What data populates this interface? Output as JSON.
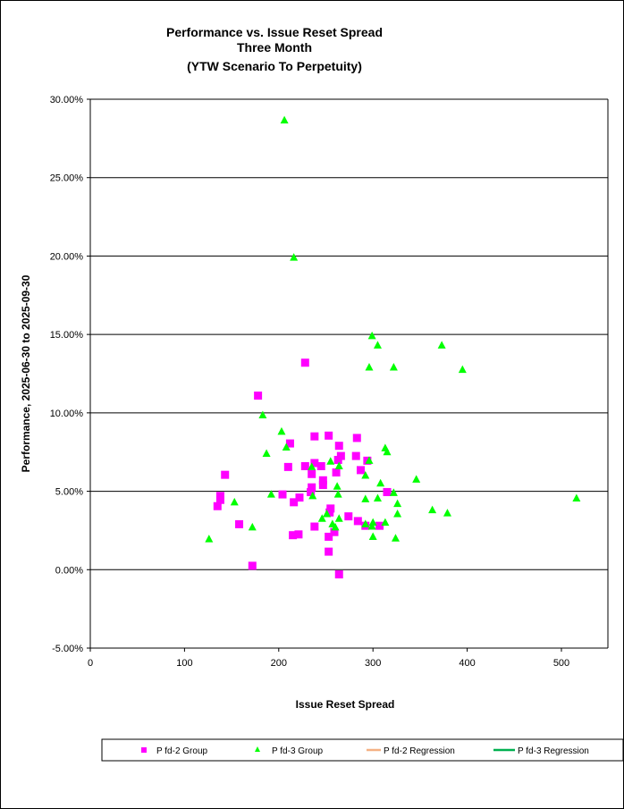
{
  "chart_data": {
    "type": "scatter",
    "title": [
      "Performance vs. Issue Reset Spread",
      "Three Month",
      "(YTW Scenario To Perpetuity)"
    ],
    "xlabel": "Issue Reset Spread",
    "ylabel": "Performance, 2025-06-30  to 2025-09-30",
    "xlim": [
      0,
      550
    ],
    "ylim": [
      -5,
      30
    ],
    "xticks": [
      0,
      100,
      200,
      300,
      400,
      500
    ],
    "xtick_labels": [
      "0",
      "100",
      "200",
      "300",
      "400",
      "500"
    ],
    "yticks": [
      -5,
      0,
      5,
      10,
      15,
      20,
      25,
      30
    ],
    "ytick_labels": [
      "-5.00%",
      "0.00%",
      "5.00%",
      "10.00%",
      "15.00%",
      "20.00%",
      "25.00%",
      "30.00%"
    ],
    "grid": "horizontal",
    "legend_position": "bottom",
    "legend": [
      "P fd-2 Group",
      "P fd-3 Group",
      "P fd-2 Regression",
      "P fd-3 Regression"
    ],
    "colors": {
      "pfd2": "#ff00ff",
      "pfd3": "#00ff00",
      "pfd2_reg": "#f4b183",
      "pfd3_reg": "#00b050"
    },
    "series": [
      {
        "name": "P fd-2 Group",
        "marker": "square",
        "points": [
          [
            228,
            13.2
          ],
          [
            178,
            11.1
          ],
          [
            143,
            6.05
          ],
          [
            138,
            4.7
          ],
          [
            138,
            4.45
          ],
          [
            135,
            4.05
          ],
          [
            158,
            2.9
          ],
          [
            172,
            0.25
          ],
          [
            212,
            8.05
          ],
          [
            210,
            6.55
          ],
          [
            204,
            4.8
          ],
          [
            216,
            4.3
          ],
          [
            222,
            4.6
          ],
          [
            215,
            2.2
          ],
          [
            221,
            2.25
          ],
          [
            228,
            6.6
          ],
          [
            238,
            8.5
          ],
          [
            238,
            6.8
          ],
          [
            235,
            6.1
          ],
          [
            235,
            5.25
          ],
          [
            234,
            4.95
          ],
          [
            238,
            2.75
          ],
          [
            245,
            6.6
          ],
          [
            247,
            5.7
          ],
          [
            247,
            5.4
          ],
          [
            253,
            8.55
          ],
          [
            255,
            3.9
          ],
          [
            254,
            3.65
          ],
          [
            253,
            2.1
          ],
          [
            253,
            1.15
          ],
          [
            259,
            2.4
          ],
          [
            264,
            7.9
          ],
          [
            266,
            7.25
          ],
          [
            261,
            6.2
          ],
          [
            263,
            7.0
          ],
          [
            264,
            -0.3
          ],
          [
            274,
            3.4
          ],
          [
            283,
            8.4
          ],
          [
            282,
            7.25
          ],
          [
            287,
            6.35
          ],
          [
            294,
            6.95
          ],
          [
            284,
            3.1
          ],
          [
            292,
            2.8
          ],
          [
            307,
            2.8
          ],
          [
            315,
            4.95
          ]
        ]
      },
      {
        "name": "P fd-3 Group",
        "marker": "triangle",
        "points": [
          [
            126,
            1.95
          ],
          [
            153,
            4.3
          ],
          [
            172,
            2.7
          ],
          [
            183,
            9.85
          ],
          [
            187,
            7.4
          ],
          [
            192,
            4.8
          ],
          [
            203,
            8.8
          ],
          [
            208,
            7.8
          ],
          [
            206,
            28.65
          ],
          [
            216,
            19.9
          ],
          [
            236,
            4.7
          ],
          [
            235,
            6.55
          ],
          [
            246,
            3.25
          ],
          [
            251,
            3.55
          ],
          [
            255,
            6.9
          ],
          [
            257,
            2.9
          ],
          [
            260,
            2.7
          ],
          [
            262,
            5.3
          ],
          [
            263,
            4.8
          ],
          [
            264,
            6.6
          ],
          [
            264,
            3.25
          ],
          [
            292,
            6.0
          ],
          [
            292,
            4.5
          ],
          [
            296,
            6.95
          ],
          [
            296,
            12.9
          ],
          [
            299,
            14.9
          ],
          [
            305,
            14.3
          ],
          [
            292,
            2.9
          ],
          [
            299,
            2.75
          ],
          [
            300,
            2.1
          ],
          [
            300,
            3.0
          ],
          [
            305,
            4.55
          ],
          [
            308,
            5.5
          ],
          [
            313,
            7.75
          ],
          [
            315,
            7.5
          ],
          [
            313,
            3.0
          ],
          [
            322,
            12.9
          ],
          [
            322,
            4.9
          ],
          [
            326,
            4.2
          ],
          [
            326,
            3.55
          ],
          [
            324,
            2.0
          ],
          [
            346,
            5.75
          ],
          [
            363,
            3.8
          ],
          [
            373,
            14.3
          ],
          [
            379,
            3.6
          ],
          [
            395,
            12.75
          ],
          [
            516,
            4.55
          ]
        ]
      }
    ]
  }
}
